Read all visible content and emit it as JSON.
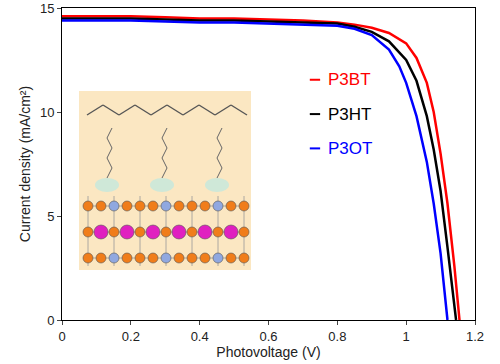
{
  "chart_data": {
    "type": "line",
    "x_label": "Photovoltage (V)",
    "y_label": "Current density (mA/cm²)",
    "xlim": [
      0,
      1.2
    ],
    "xticks": [
      0,
      0.2,
      0.4,
      0.6,
      0.8,
      1,
      1.2
    ],
    "ylim": [
      0,
      15
    ],
    "yticks": [
      0,
      5,
      10,
      15
    ],
    "grid": false,
    "legend": "right",
    "series": [
      {
        "name": "P3BT",
        "color": "#ff0000",
        "x": [
          0,
          0.1,
          0.2,
          0.3,
          0.4,
          0.5,
          0.6,
          0.7,
          0.8,
          0.85,
          0.9,
          0.95,
          1.0,
          1.03,
          1.06,
          1.08,
          1.1,
          1.12,
          1.14,
          1.155
        ],
        "values": [
          14.6,
          14.6,
          14.6,
          14.55,
          14.5,
          14.5,
          14.45,
          14.4,
          14.3,
          14.2,
          14.05,
          13.8,
          13.3,
          12.6,
          11.4,
          10.0,
          8.0,
          5.6,
          2.6,
          0
        ]
      },
      {
        "name": "P3HT",
        "color": "#000000",
        "x": [
          0,
          0.1,
          0.2,
          0.3,
          0.4,
          0.5,
          0.6,
          0.7,
          0.8,
          0.85,
          0.9,
          0.95,
          1.0,
          1.03,
          1.06,
          1.08,
          1.1,
          1.12,
          1.14,
          1.145
        ],
        "values": [
          14.5,
          14.5,
          14.5,
          14.45,
          14.4,
          14.4,
          14.35,
          14.3,
          14.25,
          14.1,
          13.85,
          13.4,
          12.5,
          11.5,
          9.8,
          8.2,
          6.2,
          3.5,
          0.6,
          0
        ]
      },
      {
        "name": "P3OT",
        "color": "#0000ff",
        "x": [
          0,
          0.1,
          0.2,
          0.3,
          0.4,
          0.5,
          0.6,
          0.7,
          0.8,
          0.85,
          0.9,
          0.95,
          0.98,
          1.0,
          1.03,
          1.06,
          1.08,
          1.1,
          1.12
        ],
        "values": [
          14.4,
          14.4,
          14.4,
          14.35,
          14.3,
          14.3,
          14.25,
          14.2,
          14.15,
          14.0,
          13.7,
          13.0,
          12.2,
          11.4,
          9.8,
          7.6,
          5.6,
          3.2,
          0
        ]
      }
    ]
  }
}
